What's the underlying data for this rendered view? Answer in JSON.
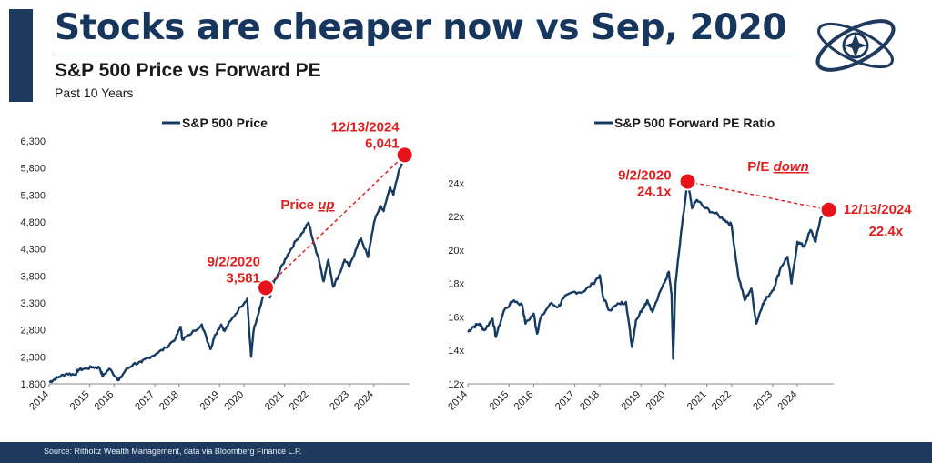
{
  "header": {
    "title": "Stocks are cheaper now vs Sep, 2020",
    "subtitle": "S&P 500 Price vs Forward PE",
    "period": "Past 10 Years"
  },
  "footer": {
    "source": "Source: Ritholtz Wealth Management, data via Bloomberg Finance L.P."
  },
  "colors": {
    "brand": "#1f3a5f",
    "series": "#173c63",
    "highlight": "#e8131a",
    "annotation": "#e01e1e"
  },
  "chart_data": [
    {
      "type": "line",
      "legend": "S&P 500 Price",
      "x_tick_labels": [
        "2014",
        "2015",
        "2016",
        "2017",
        "2018",
        "2019",
        "2020",
        "2021",
        "2022",
        "2023",
        "2024"
      ],
      "ylim": [
        1800,
        6300
      ],
      "y_ticks": [
        1800,
        2300,
        2800,
        3300,
        3800,
        4300,
        4800,
        5300,
        5800,
        6300
      ],
      "y_tick_labels": [
        "1,800",
        "2,300",
        "2,800",
        "3,300",
        "3,800",
        "4,300",
        "4,800",
        "5,300",
        "5,800",
        "6,300"
      ],
      "xlim": [
        2014.0,
        2025.1
      ],
      "series": [
        {
          "x": [
            2014.0,
            2014.15,
            2014.3,
            2014.55,
            2014.8,
            2014.9,
            2015.1,
            2015.35,
            2015.55,
            2015.65,
            2015.85,
            2016.1,
            2016.15,
            2016.35,
            2016.6,
            2016.85,
            2017.0,
            2017.3,
            2017.6,
            2017.9,
            2018.05,
            2018.1,
            2018.3,
            2018.7,
            2018.9,
            2018.98,
            2019.1,
            2019.3,
            2019.4,
            2019.6,
            2019.9,
            2020.1,
            2020.15,
            2020.22,
            2020.3,
            2020.45,
            2020.67,
            2020.8,
            2020.9,
            2021.1,
            2021.35,
            2021.6,
            2021.8,
            2021.99,
            2022.15,
            2022.3,
            2022.45,
            2022.6,
            2022.75,
            2022.95,
            2023.1,
            2023.25,
            2023.45,
            2023.6,
            2023.82,
            2024.0,
            2024.2,
            2024.3,
            2024.5,
            2024.6,
            2024.75,
            2024.95
          ],
          "y": [
            1830,
            1880,
            1930,
            1990,
            1970,
            2060,
            2080,
            2110,
            2100,
            1940,
            2080,
            1900,
            1870,
            2050,
            2170,
            2200,
            2270,
            2360,
            2470,
            2650,
            2860,
            2620,
            2700,
            2900,
            2550,
            2450,
            2700,
            2900,
            2780,
            2980,
            3230,
            3380,
            2900,
            2300,
            2800,
            3100,
            3581,
            3400,
            3650,
            3900,
            4200,
            4450,
            4600,
            4790,
            4400,
            4130,
            3700,
            4100,
            3600,
            3850,
            4100,
            3970,
            4300,
            4500,
            4150,
            4780,
            5100,
            5000,
            5450,
            5300,
            5700,
            6041
          ]
        }
      ],
      "annotations": [
        {
          "date": "9/2/2020",
          "value": "3,581",
          "x": 2020.67,
          "y": 3581
        },
        {
          "date": "12/13/2024",
          "value": "6,041",
          "x": 2024.95,
          "y": 6041
        }
      ],
      "trend_label": {
        "prefix": "Price ",
        "emph": "up"
      }
    },
    {
      "type": "line",
      "legend": "S&P 500 Forward PE Ratio",
      "x_tick_labels": [
        "2014",
        "2015",
        "2016",
        "2017",
        "2018",
        "2019",
        "2020",
        "2021",
        "2022",
        "2023",
        "2024"
      ],
      "ylim": [
        12,
        25
      ],
      "y_ticks": [
        12,
        14,
        16,
        18,
        20,
        22,
        24
      ],
      "y_tick_labels": [
        "12x",
        "14x",
        "16x",
        "18x",
        "20x",
        "22x",
        "24x"
      ],
      "xlim": [
        2014.0,
        2025.1
      ],
      "series": [
        {
          "x": [
            2014.0,
            2014.15,
            2014.35,
            2014.5,
            2014.75,
            2014.85,
            2015.1,
            2015.4,
            2015.65,
            2015.75,
            2016.0,
            2016.1,
            2016.2,
            2016.5,
            2016.75,
            2016.9,
            2017.2,
            2017.5,
            2017.8,
            2018.0,
            2018.1,
            2018.3,
            2018.6,
            2018.8,
            2018.98,
            2019.1,
            2019.3,
            2019.45,
            2019.6,
            2019.9,
            2020.1,
            2020.18,
            2020.23,
            2020.3,
            2020.5,
            2020.67,
            2020.8,
            2020.95,
            2021.2,
            2021.5,
            2021.8,
            2022.0,
            2022.2,
            2022.4,
            2022.6,
            2022.75,
            2022.95,
            2023.1,
            2023.3,
            2023.5,
            2023.7,
            2023.82,
            2024.0,
            2024.2,
            2024.4,
            2024.55,
            2024.7,
            2024.95
          ],
          "y": [
            15.1,
            15.4,
            15.6,
            15.2,
            15.9,
            14.8,
            16.4,
            17.0,
            16.7,
            15.6,
            16.2,
            15.0,
            15.9,
            16.8,
            16.6,
            17.1,
            17.5,
            17.5,
            18.0,
            18.5,
            17.2,
            16.4,
            16.8,
            16.9,
            14.2,
            15.8,
            16.5,
            17.0,
            16.3,
            17.8,
            18.7,
            17.4,
            13.5,
            18.0,
            21.5,
            24.1,
            22.5,
            23.0,
            22.5,
            22.2,
            21.8,
            21.5,
            18.5,
            17.0,
            17.7,
            15.6,
            16.8,
            17.2,
            17.8,
            19.0,
            19.6,
            18.0,
            20.5,
            20.2,
            21.2,
            20.5,
            21.9,
            22.4
          ]
        }
      ],
      "annotations": [
        {
          "date": "9/2/2020",
          "value": "24.1x",
          "x": 2020.67,
          "y": 24.1
        },
        {
          "date": "12/13/2024",
          "value": "22.4x",
          "x": 2024.95,
          "y": 22.4
        }
      ],
      "trend_label": {
        "prefix": "P/E ",
        "emph": "down"
      }
    }
  ]
}
